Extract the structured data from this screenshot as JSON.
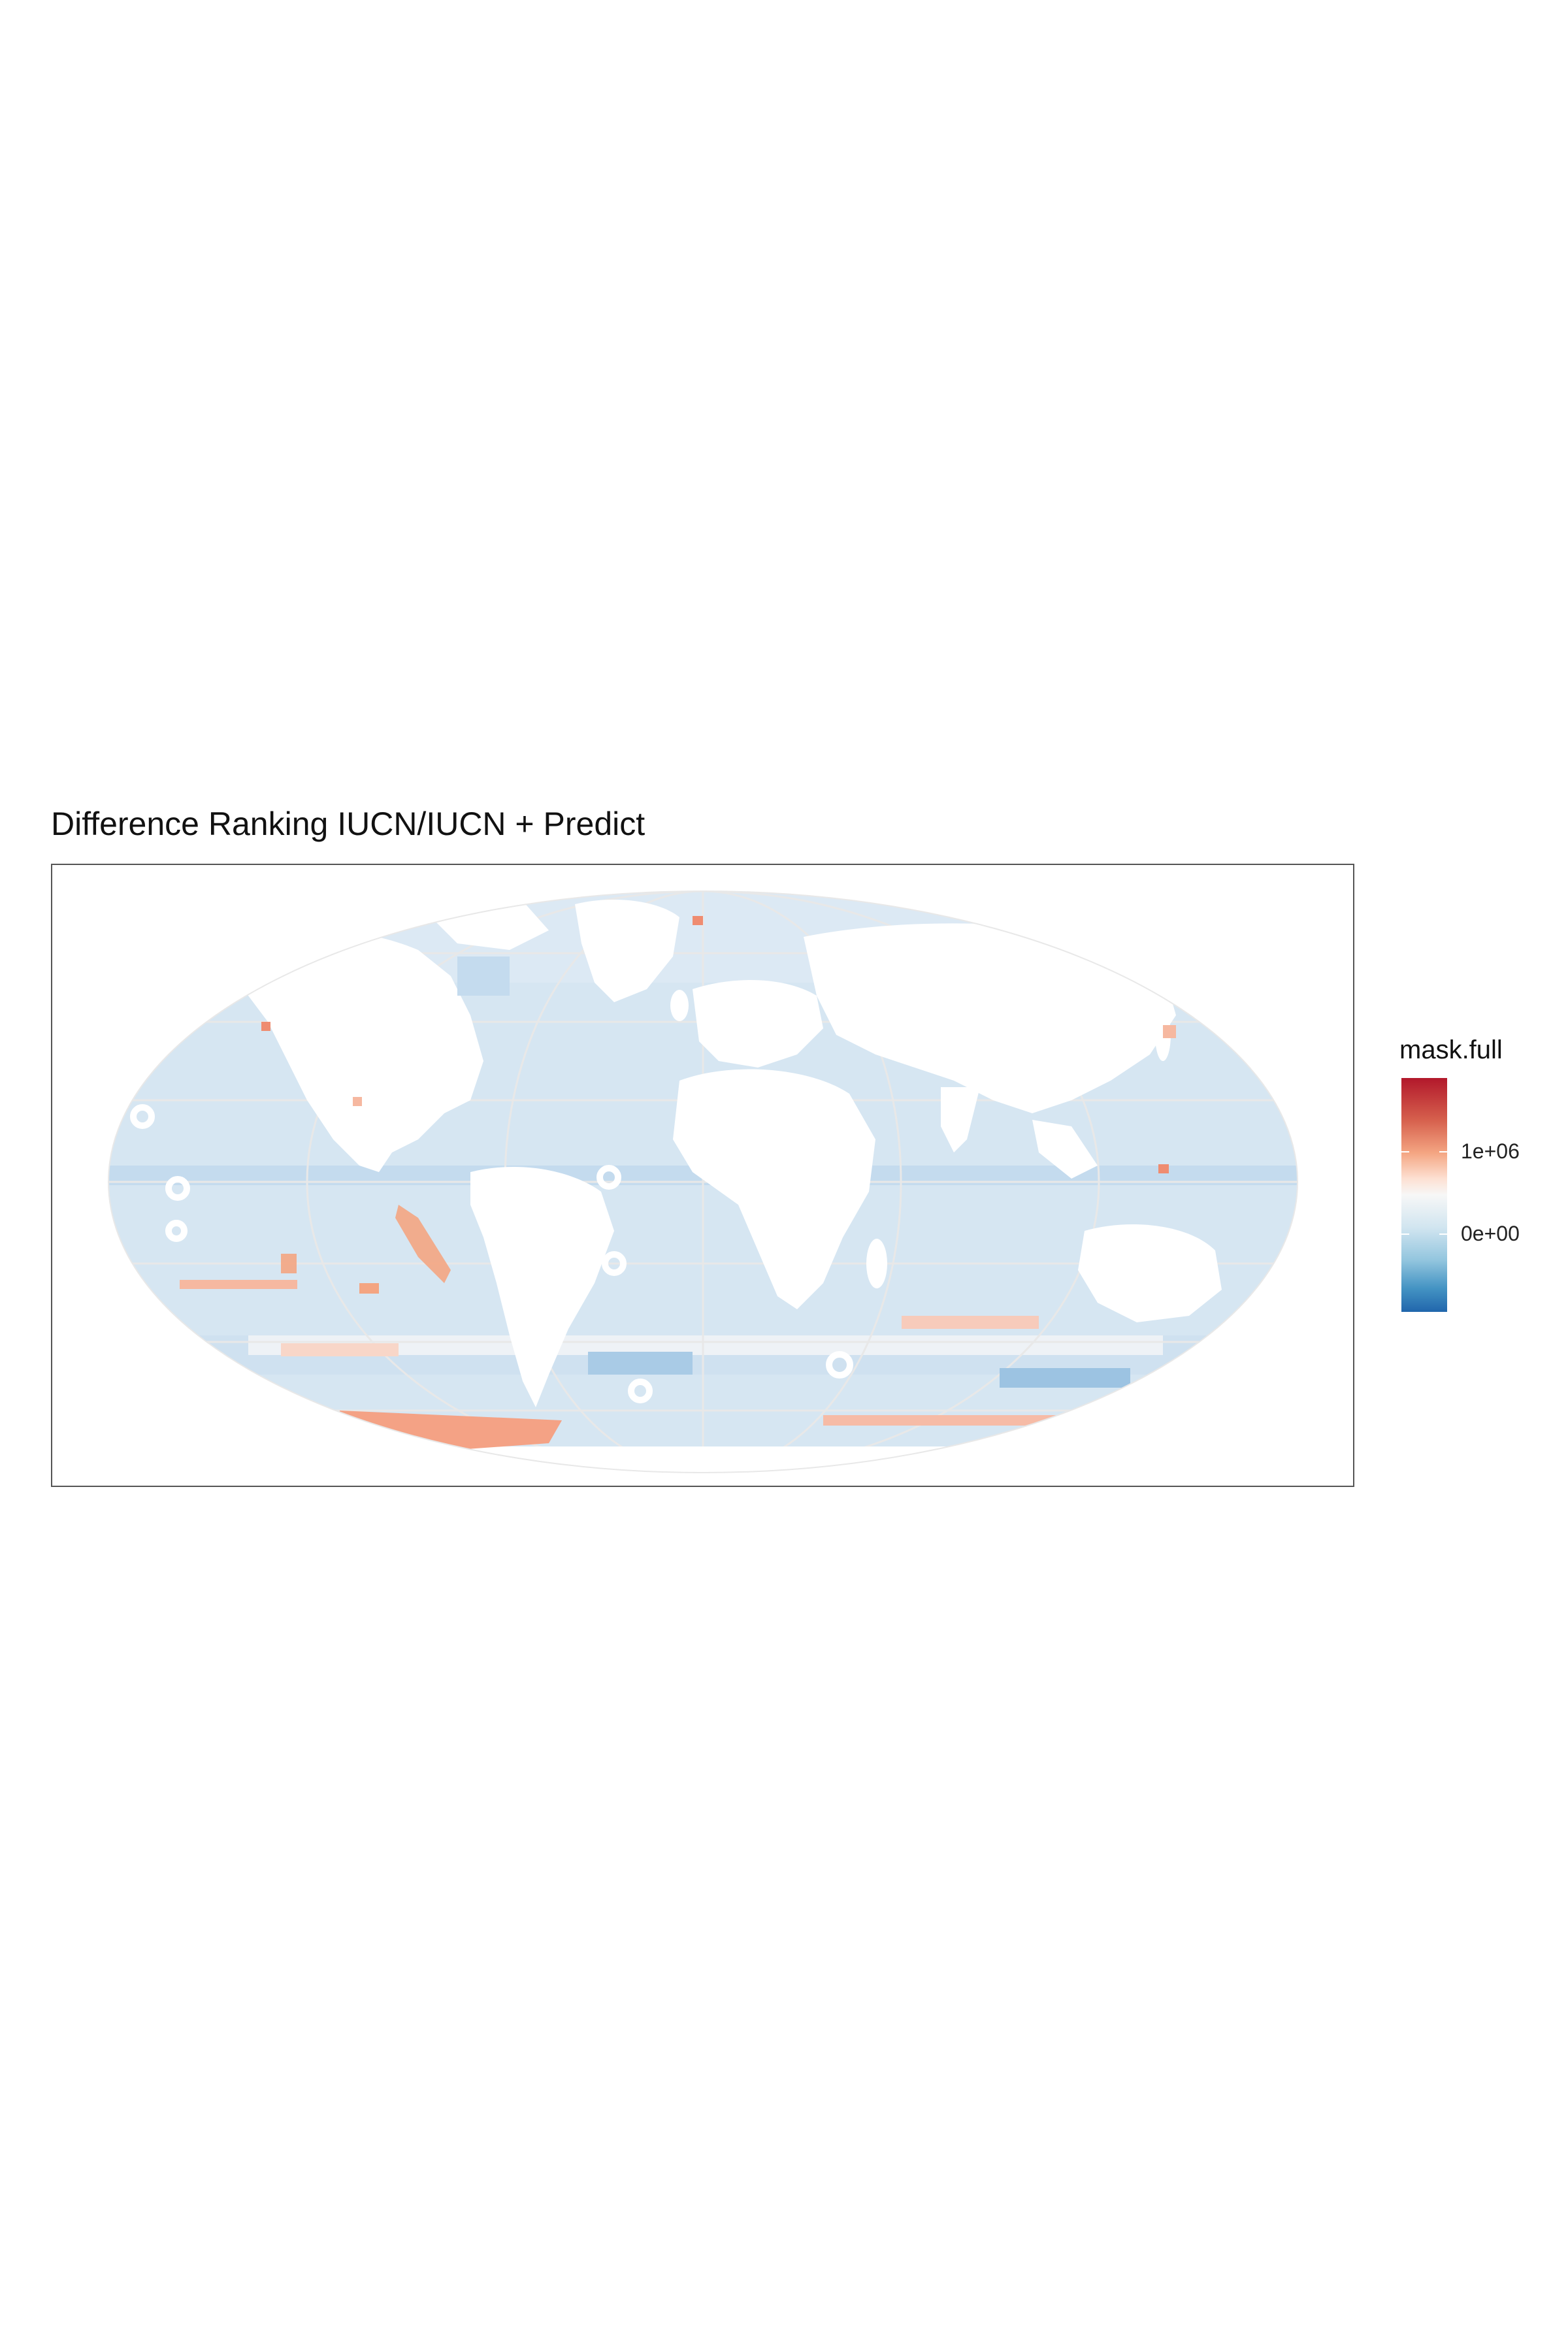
{
  "title": "Difference Ranking IUCN/IUCN + Predict",
  "legend": {
    "title": "mask.full",
    "labels": [
      "1e+06",
      "0e+00"
    ],
    "colors": {
      "high": "#b2182b",
      "mid": "#f7f7f7",
      "low": "#2166ac"
    }
  },
  "map": {
    "projection": "Mollweide",
    "ocean_color": "#d6e6f2",
    "land_color": "#ffffff",
    "hot_color": "#f4a582",
    "cold_color": "#6fa6d4",
    "graticule_color": "#e8e8e8"
  }
}
